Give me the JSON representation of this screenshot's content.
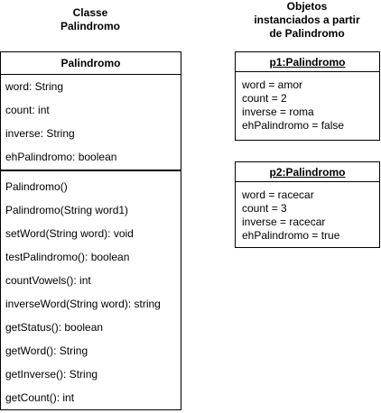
{
  "headings": {
    "class_heading": [
      "Classe",
      "Palindromo"
    ],
    "objects_heading": [
      "Objetos",
      "instanciados a partir",
      "de Palindromo"
    ]
  },
  "class": {
    "name": "Palindromo",
    "attributes": [
      "word: String",
      "count: int",
      "inverse:  String",
      "ehPalindromo:  boolean"
    ],
    "methods": [
      "Palindromo()",
      "Palindromo(String word1)",
      "setWord(String word): void",
      "testPalindromo(): boolean",
      "countVowels(): int",
      "inverseWord(String word): string",
      "getStatus(): boolean",
      "getWord(): String",
      "getInverse():  String",
      "getCount(): int"
    ]
  },
  "objects": [
    {
      "title": "p1:Palindromo",
      "fields": [
        "word = amor",
        "count = 2",
        "inverse = roma",
        "ehPalindromo = false"
      ]
    },
    {
      "title": "p2:Palindromo",
      "fields": [
        "word = racecar",
        "count = 3",
        "inverse = racecar",
        "ehPalindromo = true"
      ]
    }
  ]
}
